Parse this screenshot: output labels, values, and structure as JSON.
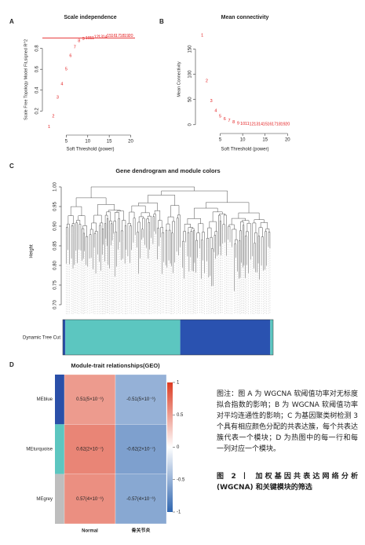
{
  "panels": [
    "A",
    "B",
    "C",
    "D"
  ],
  "chart_data": [
    {
      "type": "scatter",
      "title": "Scale independence",
      "x_label": "Soft Threshold (power)",
      "y_label": "Scale Free Topology Model Fit,signed R^2",
      "x": [
        1,
        2,
        3,
        4,
        5,
        6,
        7,
        8,
        9,
        10,
        11,
        12,
        13,
        14,
        15,
        16,
        17,
        18,
        19,
        20
      ],
      "values": [
        0.05,
        0.15,
        0.33,
        0.46,
        0.6,
        0.73,
        0.81,
        0.87,
        0.89,
        0.9,
        0.9,
        0.91,
        0.91,
        0.91,
        0.92,
        0.92,
        0.92,
        0.92,
        0.92,
        0.92
      ],
      "color": "#e31a1c",
      "xlim": [
        0,
        21
      ],
      "xticks": [
        5,
        10,
        15,
        20
      ],
      "ylim": [
        0,
        1
      ],
      "yticks": [
        0.2,
        0.4,
        0.6,
        0.8
      ],
      "hline": 0.9
    },
    {
      "type": "scatter",
      "title": "Mean connectivity",
      "x_label": "Soft Threshold (power)",
      "y_label": "Mean Connectivity",
      "x": [
        1,
        2,
        3,
        4,
        5,
        6,
        7,
        8,
        9,
        10,
        11,
        12,
        13,
        14,
        15,
        16,
        17,
        18,
        19,
        20
      ],
      "values": [
        177,
        87,
        47,
        28,
        17,
        11,
        8,
        5,
        3,
        2,
        2,
        1,
        1,
        1,
        1,
        1,
        1,
        1,
        1,
        1
      ],
      "color": "#e31a1c",
      "xlim": [
        0,
        21
      ],
      "xticks": [
        5,
        10,
        15,
        20
      ],
      "ylim": [
        -5,
        185
      ],
      "yticks": [
        0,
        50,
        100,
        150
      ]
    },
    {
      "type": "dendrogram",
      "title": "Gene dendrogram and module colors",
      "y_label": "Height",
      "track_label": "Dynamic Tree Cut",
      "ylim": [
        0.675,
        1.0
      ],
      "yticks": [
        {
          "value": 0.7,
          "label": "0.70"
        },
        {
          "value": 0.75,
          "label": "0.75"
        },
        {
          "value": 0.8,
          "label": "0.80"
        },
        {
          "value": 0.85,
          "label": "0.85"
        },
        {
          "value": 0.9,
          "label": "0.90"
        },
        {
          "value": 0.95,
          "label": "0.95"
        },
        {
          "value": 1.0,
          "label": "1.00"
        }
      ],
      "module_colors": [
        "#2a4fa8",
        "#5cc6c0",
        "#2a52b0",
        "#5cc6c0"
      ],
      "gene_counts": [
        6,
        272,
        213,
        7
      ]
    },
    {
      "type": "heatmap",
      "title": "Module-trait relationships(GEO)",
      "rows": [
        "MEblue",
        "MEturquoise",
        "MEgrey"
      ],
      "row_colors": [
        "#2a4fa8",
        "#5cc6c0",
        "#bebebe"
      ],
      "columns": [
        "Normal",
        "骨关节炎"
      ],
      "values": [
        [
          0.51,
          -0.51
        ],
        [
          0.62,
          -0.62
        ],
        [
          0.57,
          -0.57
        ]
      ],
      "value_labels": [
        [
          "0.51(5×10⁻⁶)",
          "-0.51(5×10⁻⁶)"
        ],
        [
          "0.62(2×10⁻⁷)",
          "-0.62(2×10⁻⁷)"
        ],
        [
          "0.57(4×10⁻⁶)",
          "-0.57(4×10⁻⁶)"
        ]
      ],
      "zlim": [
        -1,
        1
      ],
      "zticks": [
        -1,
        -0.5,
        0,
        0.5,
        1
      ],
      "colors": [
        "#2f66b0",
        "#ffffff",
        "#dc3b22"
      ]
    }
  ],
  "caption": {
    "note": "图注：图 A 为 WGCNA 软阈值功率对无标度拟合指数的影响；B 为 WGCNA 软阈值功率对平均连通性的影响；C 为基因聚类树检测 3 个具有相应颜色分配的共表达簇，每个共表达簇代表一个模块；D 为热图中的每一行和每一列对应一个模块。",
    "title": "图 2 丨 加权基因共表达网络分析 (WGCNA) 和关键模块的筛选"
  }
}
